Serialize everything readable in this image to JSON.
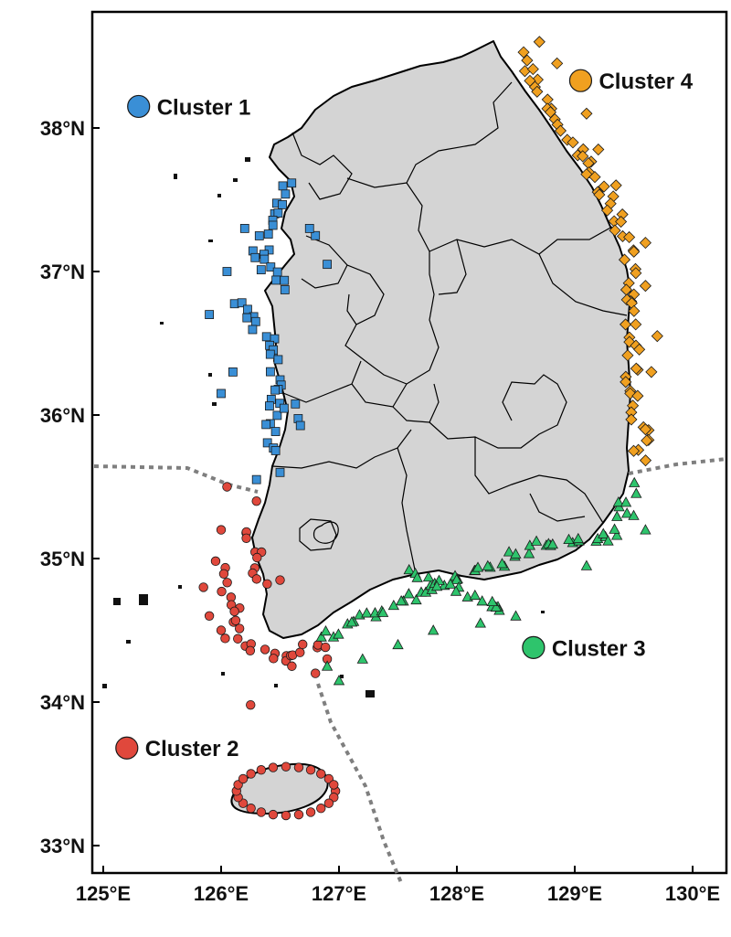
{
  "axes": {
    "x_ticks": [
      {
        "value": 125,
        "label": "125°E"
      },
      {
        "value": 126,
        "label": "126°E"
      },
      {
        "value": 127,
        "label": "127°E"
      },
      {
        "value": 128,
        "label": "128°E"
      },
      {
        "value": 129,
        "label": "129°E"
      },
      {
        "value": 130,
        "label": "130°E"
      }
    ],
    "y_ticks": [
      {
        "value": 33,
        "label": "33°N"
      },
      {
        "value": 34,
        "label": "34°N"
      },
      {
        "value": 35,
        "label": "35°N"
      },
      {
        "value": 36,
        "label": "36°N"
      },
      {
        "value": 37,
        "label": "37°N"
      },
      {
        "value": 38,
        "label": "38°N"
      }
    ],
    "lon_range": [
      125,
      130.3
    ],
    "lat_range": [
      32.8,
      38.8
    ]
  },
  "legend": [
    {
      "label": "Cluster 1",
      "color": "#3a8fd6",
      "lon": 125.3,
      "lat": 38.15
    },
    {
      "label": "Cluster 2",
      "color": "#e0483c",
      "lon": 125.2,
      "lat": 33.68
    },
    {
      "label": "Cluster 3",
      "color": "#2ec46c",
      "lon": 128.65,
      "lat": 34.38
    },
    {
      "label": "Cluster 4",
      "color": "#f0a020",
      "lon": 129.05,
      "lat": 38.33
    }
  ],
  "clusters": [
    {
      "name": "Cluster 1",
      "color": "#3a8fd6",
      "marker": "square",
      "segments": [
        [
          126.6,
          37.62,
          126.3,
          37.1
        ],
        [
          126.3,
          37.1,
          126.6,
          36.9
        ],
        [
          126.15,
          36.8,
          126.45,
          36.45
        ],
        [
          126.45,
          36.45,
          126.45,
          35.75
        ],
        [
          126.55,
          36.1,
          126.65,
          35.95
        ]
      ],
      "points": [
        [
          126.8,
          37.25
        ],
        [
          126.9,
          37.05
        ],
        [
          126.2,
          37.3
        ],
        [
          126.05,
          37.0
        ],
        [
          125.9,
          36.7
        ],
        [
          126.1,
          36.3
        ],
        [
          126.0,
          36.15
        ],
        [
          126.3,
          35.55
        ],
        [
          126.5,
          35.6
        ],
        [
          126.75,
          37.3
        ]
      ]
    },
    {
      "name": "Cluster 2",
      "color": "#e0483c",
      "marker": "circle",
      "segments": [
        [
          126.25,
          35.2,
          126.35,
          34.8
        ],
        [
          126.0,
          34.95,
          126.2,
          34.5
        ],
        [
          126.1,
          34.45,
          126.55,
          34.3
        ],
        [
          126.55,
          34.35,
          126.85,
          34.4
        ]
      ],
      "points": [
        [
          126.05,
          35.5
        ],
        [
          126.3,
          35.4
        ],
        [
          126.0,
          35.2
        ],
        [
          126.5,
          34.85
        ],
        [
          125.85,
          34.8
        ],
        [
          125.9,
          34.6
        ],
        [
          126.0,
          34.5
        ],
        [
          126.6,
          34.25
        ],
        [
          126.8,
          34.2
        ],
        [
          126.9,
          34.3
        ],
        [
          126.25,
          33.98
        ]
      ],
      "ring": {
        "lon": 126.55,
        "lat": 33.38,
        "rx": 0.42,
        "ry": 0.17,
        "n": 24
      }
    },
    {
      "name": "Cluster 3",
      "color": "#2ec46c",
      "marker": "triangle",
      "segments": [
        [
          126.85,
          34.45,
          127.4,
          34.65
        ],
        [
          127.4,
          34.65,
          128.0,
          34.85
        ],
        [
          128.0,
          34.85,
          128.7,
          35.1
        ],
        [
          128.7,
          35.1,
          129.3,
          35.15
        ],
        [
          129.3,
          35.15,
          129.5,
          35.5
        ],
        [
          127.6,
          34.9,
          128.4,
          34.65
        ]
      ],
      "points": [
        [
          127.2,
          34.3
        ],
        [
          127.5,
          34.4
        ],
        [
          127.8,
          34.5
        ],
        [
          128.2,
          34.55
        ],
        [
          128.5,
          34.6
        ],
        [
          128.3,
          34.7
        ],
        [
          129.1,
          34.95
        ],
        [
          129.5,
          35.3
        ],
        [
          129.6,
          35.2
        ],
        [
          127.0,
          34.15
        ],
        [
          126.9,
          34.25
        ]
      ]
    },
    {
      "name": "Cluster 4",
      "color": "#f0a020",
      "marker": "diamond",
      "segments": [
        [
          128.55,
          38.5,
          129.1,
          37.75
        ],
        [
          129.1,
          37.75,
          129.4,
          37.35
        ],
        [
          129.4,
          37.35,
          129.5,
          36.8
        ],
        [
          129.5,
          36.8,
          129.5,
          36.2
        ],
        [
          129.5,
          36.2,
          129.6,
          35.7
        ]
      ],
      "points": [
        [
          128.7,
          38.6
        ],
        [
          128.85,
          38.45
        ],
        [
          129.1,
          38.1
        ],
        [
          129.2,
          37.85
        ],
        [
          129.35,
          37.6
        ],
        [
          129.6,
          37.2
        ],
        [
          129.6,
          36.9
        ],
        [
          129.7,
          36.55
        ],
        [
          129.65,
          36.3
        ],
        [
          129.6,
          35.9
        ],
        [
          129.5,
          35.75
        ]
      ]
    }
  ]
}
